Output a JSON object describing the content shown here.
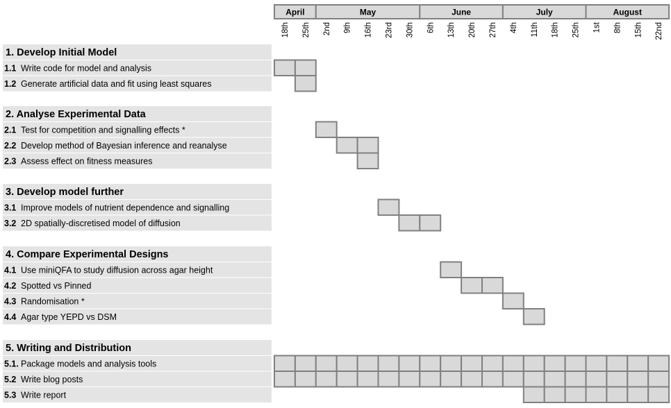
{
  "colors": {
    "label_band": "#e4e4e4",
    "cell_fill": "#d9d9d9",
    "cell_stroke": "#808080",
    "header_fill": "#d9d9d9"
  },
  "months": [
    {
      "label": "April",
      "span": 2
    },
    {
      "label": "May",
      "span": 5
    },
    {
      "label": "June",
      "span": 4
    },
    {
      "label": "July",
      "span": 4
    },
    {
      "label": "August",
      "span": 4
    }
  ],
  "weeks": [
    "18th",
    "25th",
    "2nd",
    "9th",
    "16th",
    "23rd",
    "30th",
    "6th",
    "13th",
    "20th",
    "27th",
    "4th",
    "11th",
    "18th",
    "25th",
    "1st",
    "8th",
    "15th",
    "22nd"
  ],
  "sections": [
    {
      "title": "1. Develop Initial Model",
      "tasks": [
        {
          "num": "1.1",
          "text": "Write code for model and analysis",
          "start": 0,
          "end": 1
        },
        {
          "num": "1.2",
          "text": "Generate artificial data and fit using least squares",
          "start": 1,
          "end": 1
        }
      ]
    },
    {
      "title": "2. Analyse Experimental Data",
      "tasks": [
        {
          "num": "2.1",
          "text": "Test for competition and signalling effects *",
          "start": 2,
          "end": 2
        },
        {
          "num": "2.2",
          "text": "Develop method of Bayesian inference and reanalyse",
          "start": 3,
          "end": 4
        },
        {
          "num": "2.3",
          "text": "Assess effect on fitness measures",
          "start": 4,
          "end": 4
        }
      ]
    },
    {
      "title": "3. Develop model further",
      "tasks": [
        {
          "num": "3.1",
          "text": "Improve models of nutrient dependence and signalling",
          "start": 5,
          "end": 5
        },
        {
          "num": "3.2",
          "text": "2D spatially-discretised model of diffusion",
          "start": 6,
          "end": 7
        }
      ]
    },
    {
      "title": "4. Compare Experimental Designs",
      "tasks": [
        {
          "num": "4.1",
          "text": "Use miniQFA to study diffusion across agar height",
          "start": 8,
          "end": 8
        },
        {
          "num": "4.2",
          "text": "Spotted vs Pinned",
          "start": 9,
          "end": 10
        },
        {
          "num": "4.3",
          "text": "Randomisation *",
          "start": 11,
          "end": 11
        },
        {
          "num": "4.4",
          "text": "Agar type YEPD vs DSM",
          "start": 12,
          "end": 12
        }
      ]
    },
    {
      "title": "5. Writing and Distribution",
      "tasks": [
        {
          "num": "5.1.",
          "text": "Package models and analysis tools",
          "start": 0,
          "end": 18
        },
        {
          "num": "5.2",
          "text": "Write blog posts",
          "start": 0,
          "end": 18
        },
        {
          "num": "5.3",
          "text": "Write report",
          "start": 12,
          "end": 18
        }
      ]
    }
  ]
}
